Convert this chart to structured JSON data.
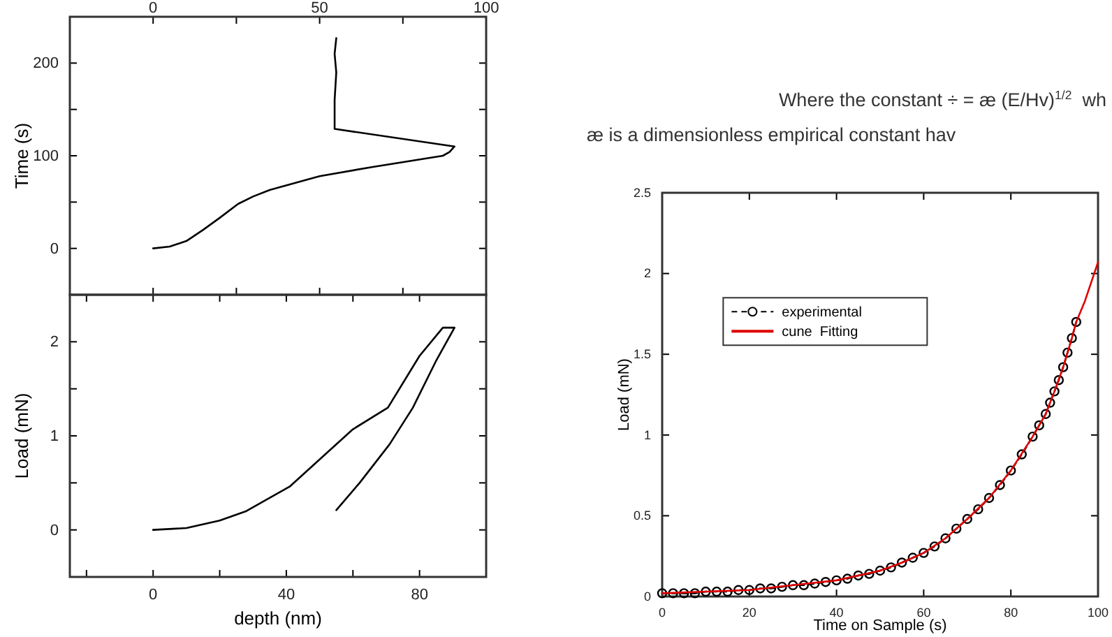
{
  "chart_data": [
    {
      "type": "line",
      "ylabel": "Time (s)",
      "xlim": [
        -25,
        100
      ],
      "ylim": [
        -50,
        250
      ],
      "xticks": [
        0,
        25,
        50,
        75,
        100
      ],
      "x2lim": [
        -25,
        100
      ],
      "x2ticks": [
        0,
        {
          "value": 25,
          "label": null
        },
        50,
        {
          "value": 75,
          "label": null
        },
        100
      ],
      "yticks": [
        {
          "value": -50,
          "label": null
        },
        0,
        {
          "value": 50,
          "label": null
        },
        100,
        {
          "value": 150,
          "label": null
        },
        200,
        {
          "value": 250,
          "label": null
        }
      ],
      "tick_labels": "y",
      "grid": false,
      "legend": false,
      "series": [
        {
          "color": "#000000",
          "x": [
            0,
            5,
            10,
            15,
            20,
            25.5,
            30,
            35,
            50,
            66,
            87,
            89,
            90.5,
            54.5,
            54.5,
            55,
            54.5,
            55
          ],
          "values": [
            0,
            2,
            8,
            20,
            33,
            48,
            56,
            63,
            78,
            88,
            100,
            104,
            110,
            129,
            160,
            190,
            210,
            227
          ]
        }
      ]
    },
    {
      "type": "line",
      "xlabel": "depth (nm)",
      "ylabel": "Load (mN)",
      "xlim": [
        -25,
        100
      ],
      "ylim": [
        -0.5,
        2.5
      ],
      "xticks": [
        {
          "value": -20,
          "label": null
        },
        0,
        {
          "value": 20,
          "label": null
        },
        40,
        {
          "value": 60,
          "label": null
        },
        80
      ],
      "yticks": [
        {
          "value": -0.5,
          "label": null
        },
        0,
        {
          "value": 0.5,
          "label": null
        },
        1,
        {
          "value": 1.5,
          "label": null
        },
        2
      ],
      "grid": false,
      "legend": false,
      "series": [
        {
          "color": "#000000",
          "x": [
            0,
            10,
            20,
            28,
            41,
            50,
            60,
            70.5,
            80,
            87,
            90.5,
            85,
            78,
            71,
            62,
            55
          ],
          "values": [
            0,
            0.02,
            0.1,
            0.2,
            0.46,
            0.75,
            1.07,
            1.3,
            1.85,
            2.15,
            2.15,
            1.8,
            1.3,
            0.91,
            0.5,
            0.21
          ]
        }
      ]
    },
    {
      "type": "line",
      "xlabel": "Time on Sample (s)",
      "ylabel": "Load (mN)",
      "xlim": [
        0,
        100
      ],
      "ylim": [
        0,
        2.5
      ],
      "xticks": [
        0,
        20,
        40,
        60,
        80,
        100
      ],
      "yticks": [
        0,
        0.5,
        1,
        1.5,
        2,
        2.5
      ],
      "grid": false,
      "legend": "left",
      "annotations": [
        "Where the constant ÷ = æ (E/Hv)$^{1/2}$  wh",
        "æ is a dimensionless empirical constant hav"
      ],
      "series": [
        {
          "name": "experimental",
          "color": "#000000",
          "marker": "circle",
          "line_style": "dashed",
          "x": [
            0,
            2.5,
            5,
            7.5,
            10,
            12.5,
            15,
            17.5,
            20,
            22.5,
            25,
            27.5,
            30,
            32.5,
            35,
            37.5,
            40,
            42.5,
            45,
            47.5,
            50,
            52.5,
            55,
            57.5,
            60,
            62.5,
            65,
            67.5,
            70,
            72.5,
            75,
            77.5,
            80,
            82.5,
            85,
            86.5,
            88,
            89,
            90,
            91,
            92,
            93,
            94,
            95
          ],
          "values": [
            0.02,
            0.02,
            0.02,
            0.02,
            0.03,
            0.03,
            0.03,
            0.04,
            0.04,
            0.05,
            0.05,
            0.06,
            0.07,
            0.07,
            0.08,
            0.09,
            0.1,
            0.11,
            0.13,
            0.14,
            0.16,
            0.18,
            0.21,
            0.24,
            0.27,
            0.31,
            0.36,
            0.42,
            0.48,
            0.54,
            0.61,
            0.69,
            0.78,
            0.88,
            0.99,
            1.06,
            1.13,
            1.2,
            1.27,
            1.34,
            1.42,
            1.51,
            1.6,
            1.7
          ]
        },
        {
          "name": "cune  Fitting",
          "color": "#e00000",
          "marker": "none",
          "line_style": "solid",
          "x": [
            0,
            10,
            20,
            30,
            40,
            50,
            55,
            60,
            65,
            70,
            75,
            80,
            85,
            88,
            90,
            92,
            94,
            95,
            97,
            100
          ],
          "values": [
            0.02,
            0.03,
            0.04,
            0.07,
            0.1,
            0.16,
            0.21,
            0.27,
            0.36,
            0.48,
            0.61,
            0.78,
            0.99,
            1.13,
            1.27,
            1.42,
            1.6,
            1.7,
            1.83,
            2.07
          ]
        }
      ]
    }
  ]
}
